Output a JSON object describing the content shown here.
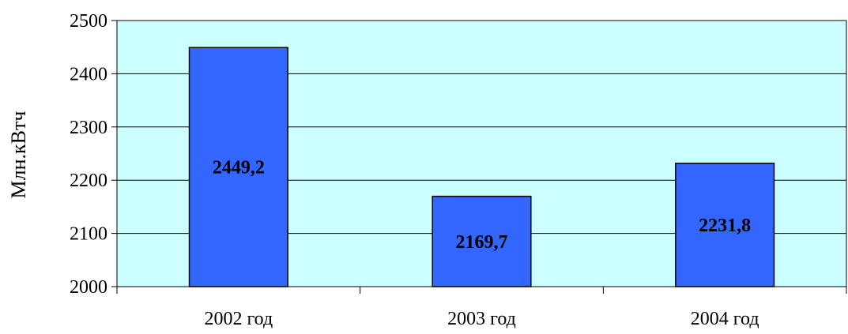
{
  "chart_data": {
    "type": "bar",
    "categories": [
      "2002 год",
      "2003 год",
      "2004 год"
    ],
    "values": [
      2449.2,
      2169.7,
      2231.8
    ],
    "data_labels": [
      "2449,2",
      "2169,7",
      "2231,8"
    ],
    "ylabel": "Млн.кВтч",
    "xlabel": "",
    "ylim": [
      2000,
      2500
    ],
    "yticks": [
      "2000",
      "2100",
      "2200",
      "2300",
      "2400",
      "2500"
    ],
    "grid": true,
    "legend": "none",
    "colors": {
      "plot_background": "#CCFFFF",
      "bar_fill": "#3366FF",
      "bar_stroke": "#000000"
    }
  }
}
